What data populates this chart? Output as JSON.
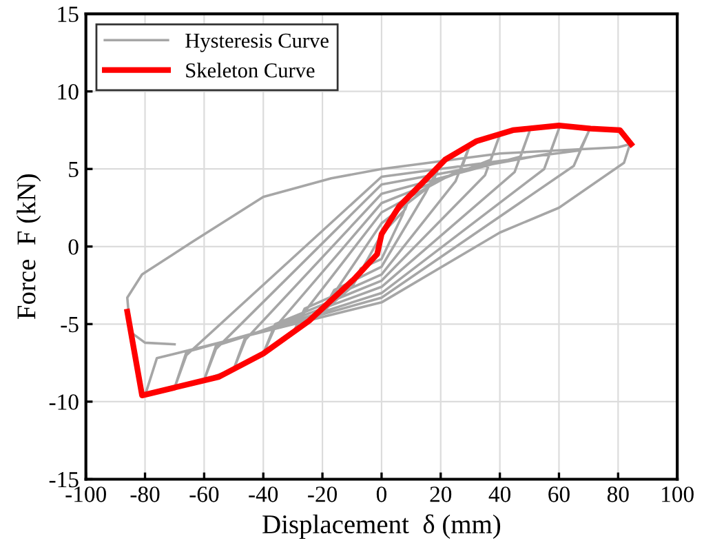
{
  "chart_data": {
    "type": "line",
    "xlabel": "Displacement  δ (mm)",
    "ylabel": "Force  F (kN)",
    "xlim": [
      -100,
      100
    ],
    "xticks": [
      -100,
      -80,
      -60,
      -40,
      -20,
      0,
      20,
      40,
      60,
      80,
      100
    ],
    "ylim": [
      -15,
      15
    ],
    "yticks": [
      -15,
      -10,
      -5,
      0,
      5,
      10,
      15
    ],
    "grid": true,
    "legend": "top left",
    "line_style": "solid",
    "marker": "none",
    "series": [
      {
        "name": "Hysteresis Curve",
        "color": "#a6a6a6",
        "x": [
          -10,
          -7,
          0,
          7,
          10,
          8,
          0,
          -7,
          -10,
          -20,
          -16,
          0,
          15,
          20,
          17,
          0,
          -16,
          -20,
          -30,
          -26,
          0,
          25,
          30,
          27,
          0,
          -26,
          -30,
          -40,
          -36,
          0,
          35,
          40,
          37,
          0,
          -36,
          -40,
          -50,
          -46,
          0,
          45,
          50,
          47,
          0,
          -46,
          -50,
          -60,
          -56,
          0,
          55,
          60,
          57,
          0,
          -56,
          -60,
          -70,
          -66,
          0,
          65,
          70,
          67,
          0,
          -66,
          -70,
          -80,
          -76,
          0,
          40,
          60,
          82,
          84,
          80,
          40,
          0,
          -17,
          -40,
          -64,
          -81,
          -86,
          -85,
          -80,
          -70
        ],
        "values": [
          -2.6,
          -1.4,
          -0.8,
          2.0,
          3.5,
          2.4,
          0.8,
          -1.6,
          -2.6,
          -4.2,
          -2.8,
          -1.3,
          3.5,
          5.4,
          4.0,
          1.5,
          -3.0,
          -4.2,
          -5.6,
          -4.0,
          -1.8,
          4.2,
          6.6,
          5.0,
          2.2,
          -4.2,
          -5.6,
          -6.9,
          -5.0,
          -2.2,
          4.6,
          7.2,
          5.6,
          2.8,
          -5.2,
          -6.9,
          -7.9,
          -5.8,
          -2.6,
          4.8,
          7.4,
          5.8,
          3.4,
          -6.0,
          -7.9,
          -8.6,
          -6.4,
          -3.0,
          5.0,
          7.6,
          6.0,
          4.0,
          -6.6,
          -8.6,
          -9.1,
          -6.8,
          -3.3,
          5.2,
          7.4,
          6.2,
          4.5,
          -7.0,
          -9.1,
          -9.6,
          -7.2,
          -3.6,
          0.9,
          2.5,
          5.4,
          6.6,
          6.4,
          6.0,
          5.0,
          4.4,
          3.2,
          0.3,
          -1.8,
          -3.3,
          -5.5,
          -6.2,
          -6.3
        ]
      },
      {
        "name": "Skeleton Curve",
        "color": "#ff0000",
        "x": [
          -86,
          -81,
          -55,
          -40,
          -24.6,
          -9.3,
          -1.5,
          0,
          6,
          13.8,
          21.5,
          32.2,
          44.4,
          60,
          70.7,
          80.6,
          84.4
        ],
        "values": [
          -4.2,
          -9.6,
          -8.4,
          -6.9,
          -4.8,
          -2.1,
          -0.5,
          0.8,
          2.6,
          4.1,
          5.6,
          6.8,
          7.5,
          7.8,
          7.6,
          7.5,
          6.6
        ]
      }
    ]
  }
}
